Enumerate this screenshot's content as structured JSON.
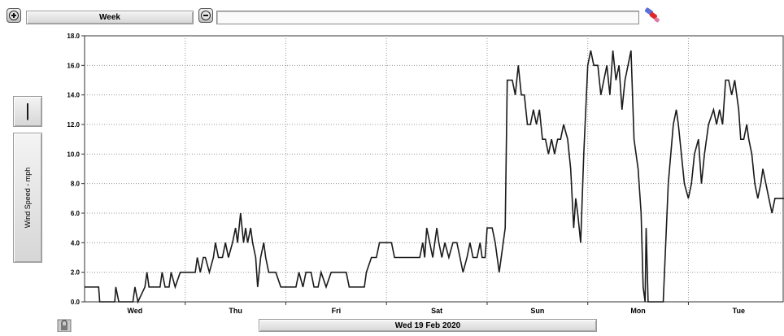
{
  "toolbar": {
    "zoom_in_icon": "zoom-in-icon",
    "period_label": "Week",
    "zoom_out_icon": "zoom-out-icon",
    "range_value": "",
    "brush_icon": "paint-brush-icon"
  },
  "side_panel": {
    "pipe_label": "|",
    "axis_button_label": "Wind Speed - mph"
  },
  "footer": {
    "date_label": "Wed 19 Feb 2020",
    "lock_icon": "lock-icon"
  },
  "colors": {
    "line": "#1a1a1a",
    "grid": "#9a9a9a",
    "axis_bg": "#ffffff"
  },
  "chart_data": {
    "type": "line",
    "title": "",
    "xlabel": "",
    "ylabel": "Wind Speed - mph",
    "ylim": [
      0,
      18
    ],
    "xlim": [
      0,
      6.95
    ],
    "ytick_labels": [
      "0.0",
      "2.0",
      "4.0",
      "6.0",
      "8.0",
      "10.0",
      "12.0",
      "14.0",
      "16.0",
      "18.0"
    ],
    "day_labels": [
      "Wed",
      "Thu",
      "Fri",
      "Sat",
      "Sun",
      "Mon",
      "Tue"
    ],
    "grid": true,
    "series": [
      {
        "points": [
          [
            0,
            1
          ],
          [
            0.14,
            1
          ],
          [
            0.15,
            0
          ],
          [
            0.3,
            0
          ],
          [
            0.31,
            1
          ],
          [
            0.34,
            0
          ],
          [
            0.48,
            0
          ],
          [
            0.5,
            1
          ],
          [
            0.53,
            0
          ],
          [
            0.6,
            1
          ],
          [
            0.62,
            2
          ],
          [
            0.64,
            1
          ],
          [
            0.7,
            1
          ],
          [
            0.75,
            1
          ],
          [
            0.77,
            2
          ],
          [
            0.8,
            1
          ],
          [
            0.84,
            1
          ],
          [
            0.86,
            2
          ],
          [
            0.9,
            1
          ],
          [
            0.95,
            2
          ],
          [
            1.0,
            2
          ],
          [
            1.05,
            2
          ],
          [
            1.1,
            2
          ],
          [
            1.12,
            3
          ],
          [
            1.15,
            2
          ],
          [
            1.18,
            3
          ],
          [
            1.2,
            3
          ],
          [
            1.24,
            2
          ],
          [
            1.28,
            3
          ],
          [
            1.3,
            4
          ],
          [
            1.33,
            3
          ],
          [
            1.37,
            3
          ],
          [
            1.4,
            4
          ],
          [
            1.43,
            3
          ],
          [
            1.47,
            4
          ],
          [
            1.5,
            5
          ],
          [
            1.52,
            4
          ],
          [
            1.55,
            6
          ],
          [
            1.58,
            4
          ],
          [
            1.6,
            5
          ],
          [
            1.62,
            4
          ],
          [
            1.65,
            5
          ],
          [
            1.67,
            4
          ],
          [
            1.7,
            3
          ],
          [
            1.72,
            1
          ],
          [
            1.75,
            3
          ],
          [
            1.78,
            4
          ],
          [
            1.8,
            3
          ],
          [
            1.83,
            2
          ],
          [
            1.87,
            2
          ],
          [
            1.9,
            2
          ],
          [
            1.95,
            1
          ],
          [
            2.1,
            1
          ],
          [
            2.13,
            2
          ],
          [
            2.17,
            1
          ],
          [
            2.2,
            2
          ],
          [
            2.25,
            2
          ],
          [
            2.28,
            1
          ],
          [
            2.32,
            1
          ],
          [
            2.35,
            2
          ],
          [
            2.4,
            1
          ],
          [
            2.45,
            2
          ],
          [
            2.6,
            2
          ],
          [
            2.63,
            1
          ],
          [
            2.7,
            1
          ],
          [
            2.78,
            1
          ],
          [
            2.8,
            2
          ],
          [
            2.85,
            3
          ],
          [
            2.9,
            3
          ],
          [
            2.93,
            4
          ],
          [
            3.0,
            4
          ],
          [
            3.05,
            4
          ],
          [
            3.08,
            3
          ],
          [
            3.15,
            3
          ],
          [
            3.25,
            3
          ],
          [
            3.3,
            3
          ],
          [
            3.33,
            3
          ],
          [
            3.36,
            4
          ],
          [
            3.38,
            3
          ],
          [
            3.4,
            5
          ],
          [
            3.43,
            4
          ],
          [
            3.46,
            3
          ],
          [
            3.5,
            5
          ],
          [
            3.52,
            4
          ],
          [
            3.55,
            3
          ],
          [
            3.58,
            4
          ],
          [
            3.62,
            3
          ],
          [
            3.66,
            4
          ],
          [
            3.7,
            4
          ],
          [
            3.73,
            3
          ],
          [
            3.76,
            2
          ],
          [
            3.8,
            3
          ],
          [
            3.83,
            4
          ],
          [
            3.86,
            3
          ],
          [
            3.9,
            3
          ],
          [
            3.93,
            4
          ],
          [
            3.95,
            3
          ],
          [
            3.98,
            3
          ],
          [
            4.0,
            5
          ],
          [
            4.05,
            5
          ],
          [
            4.08,
            4
          ],
          [
            4.12,
            2
          ],
          [
            4.14,
            3
          ],
          [
            4.18,
            5
          ],
          [
            4.2,
            15
          ],
          [
            4.25,
            15
          ],
          [
            4.28,
            14
          ],
          [
            4.31,
            16
          ],
          [
            4.34,
            14
          ],
          [
            4.37,
            14
          ],
          [
            4.4,
            12
          ],
          [
            4.43,
            12
          ],
          [
            4.46,
            13
          ],
          [
            4.49,
            12
          ],
          [
            4.52,
            13
          ],
          [
            4.55,
            11
          ],
          [
            4.58,
            11
          ],
          [
            4.61,
            10
          ],
          [
            4.64,
            11
          ],
          [
            4.67,
            10
          ],
          [
            4.7,
            11
          ],
          [
            4.73,
            11
          ],
          [
            4.76,
            12
          ],
          [
            4.8,
            11
          ],
          [
            4.83,
            9
          ],
          [
            4.86,
            5
          ],
          [
            4.88,
            7
          ],
          [
            4.9,
            6
          ],
          [
            4.93,
            4
          ],
          [
            4.96,
            10
          ],
          [
            5.0,
            16
          ],
          [
            5.03,
            17
          ],
          [
            5.06,
            16
          ],
          [
            5.1,
            16
          ],
          [
            5.13,
            14
          ],
          [
            5.16,
            15
          ],
          [
            5.19,
            16
          ],
          [
            5.22,
            14
          ],
          [
            5.25,
            17
          ],
          [
            5.28,
            15
          ],
          [
            5.31,
            16
          ],
          [
            5.34,
            13
          ],
          [
            5.37,
            15
          ],
          [
            5.4,
            16
          ],
          [
            5.43,
            17
          ],
          [
            5.46,
            11
          ],
          [
            5.5,
            9
          ],
          [
            5.53,
            6
          ],
          [
            5.55,
            1
          ],
          [
            5.57,
            0
          ],
          [
            5.58,
            5
          ],
          [
            5.6,
            0
          ],
          [
            5.75,
            0
          ],
          [
            5.8,
            8
          ],
          [
            5.85,
            12
          ],
          [
            5.88,
            13
          ],
          [
            5.9,
            12
          ],
          [
            5.93,
            10
          ],
          [
            5.96,
            8
          ],
          [
            6.0,
            7
          ],
          [
            6.03,
            8
          ],
          [
            6.06,
            10
          ],
          [
            6.1,
            11
          ],
          [
            6.13,
            8
          ],
          [
            6.16,
            10
          ],
          [
            6.2,
            12
          ],
          [
            6.25,
            13
          ],
          [
            6.28,
            12
          ],
          [
            6.31,
            13
          ],
          [
            6.34,
            12
          ],
          [
            6.37,
            15
          ],
          [
            6.4,
            15
          ],
          [
            6.43,
            14
          ],
          [
            6.46,
            15
          ],
          [
            6.5,
            13
          ],
          [
            6.52,
            11
          ],
          [
            6.55,
            11
          ],
          [
            6.58,
            12
          ],
          [
            6.6,
            11
          ],
          [
            6.63,
            10
          ],
          [
            6.66,
            8
          ],
          [
            6.69,
            7
          ],
          [
            6.72,
            8
          ],
          [
            6.74,
            9
          ],
          [
            6.77,
            8
          ],
          [
            6.8,
            7
          ],
          [
            6.83,
            6
          ],
          [
            6.86,
            7
          ],
          [
            6.9,
            7
          ],
          [
            6.95,
            7
          ]
        ]
      }
    ]
  }
}
